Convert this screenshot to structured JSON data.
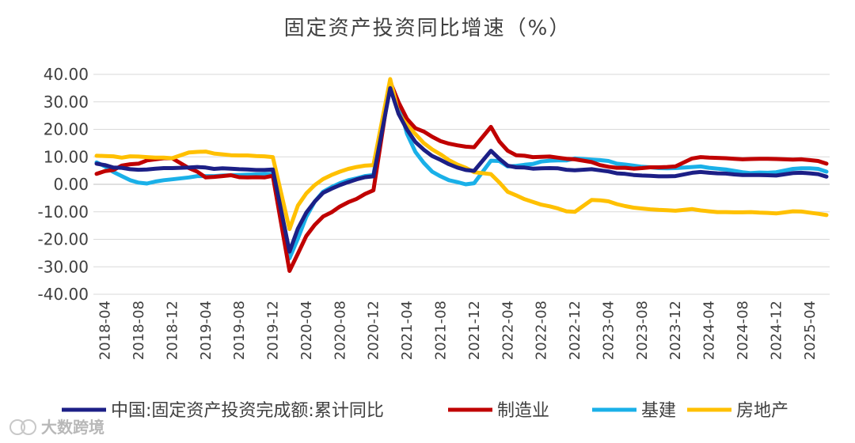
{
  "chart_data": {
    "type": "line",
    "title": "固定资产投资同比增速（%）",
    "xlabel": "",
    "ylabel": "",
    "ylim": [
      -40,
      40
    ],
    "yticks": [
      -40,
      -30,
      -20,
      -10,
      0,
      10,
      20,
      30,
      40
    ],
    "ytick_labels": [
      "-40.00",
      "-30.00",
      "-20.00",
      "-10.00",
      "0.00",
      "10.00",
      "20.00",
      "30.00",
      "40.00"
    ],
    "grid": "horizontal",
    "legend_position": "bottom",
    "x_tick_labels": [
      "2018-04",
      "2018-08",
      "2018-12",
      "2019-04",
      "2019-08",
      "2019-12",
      "2020-04",
      "2020-08",
      "2020-12",
      "2021-04",
      "2021-08",
      "2021-12",
      "2022-04",
      "2022-08",
      "2022-12",
      "2023-04",
      "2023-08",
      "2023-12",
      "2024-04",
      "2024-08",
      "2024-12",
      "2025-04"
    ],
    "x": [
      "2018-03",
      "2018-04",
      "2018-05",
      "2018-06",
      "2018-07",
      "2018-08",
      "2018-09",
      "2018-10",
      "2018-11",
      "2018-12",
      "2019-02",
      "2019-03",
      "2019-04",
      "2019-05",
      "2019-06",
      "2019-07",
      "2019-08",
      "2019-09",
      "2019-10",
      "2019-11",
      "2019-12",
      "2020-02",
      "2020-03",
      "2020-04",
      "2020-05",
      "2020-06",
      "2020-07",
      "2020-08",
      "2020-09",
      "2020-10",
      "2020-11",
      "2020-12",
      "2021-02",
      "2021-03",
      "2021-04",
      "2021-05",
      "2021-06",
      "2021-07",
      "2021-08",
      "2021-09",
      "2021-10",
      "2021-11",
      "2021-12",
      "2022-02",
      "2022-03",
      "2022-04",
      "2022-05",
      "2022-06",
      "2022-07",
      "2022-08",
      "2022-09",
      "2022-10",
      "2022-11",
      "2022-12",
      "2023-02",
      "2023-03",
      "2023-04",
      "2023-05",
      "2023-06",
      "2023-07",
      "2023-08",
      "2023-09",
      "2023-10",
      "2023-11",
      "2023-12",
      "2024-02",
      "2024-03",
      "2024-04",
      "2024-05",
      "2024-06",
      "2024-07",
      "2024-08",
      "2024-09",
      "2024-10",
      "2024-11",
      "2024-12",
      "2025-02",
      "2025-03",
      "2025-04",
      "2025-05",
      "2025-06"
    ],
    "series": [
      {
        "name": "中国:固定资产投资完成额:累计同比",
        "color": "#1c1f86",
        "values": [
          7.5,
          7.0,
          6.1,
          6.0,
          5.5,
          5.3,
          5.4,
          5.7,
          5.9,
          5.9,
          6.1,
          6.3,
          6.1,
          5.6,
          5.8,
          5.7,
          5.5,
          5.4,
          5.2,
          5.2,
          5.4,
          -24.5,
          -16.1,
          -10.3,
          -6.3,
          -3.1,
          -1.6,
          -0.3,
          0.8,
          1.8,
          2.6,
          2.9,
          35.0,
          25.6,
          19.9,
          15.4,
          12.6,
          10.3,
          8.9,
          7.3,
          6.1,
          5.2,
          4.9,
          12.2,
          9.3,
          6.8,
          6.2,
          6.1,
          5.7,
          5.8,
          5.9,
          5.8,
          5.3,
          5.1,
          5.5,
          5.1,
          4.7,
          4.0,
          3.8,
          3.4,
          3.2,
          3.1,
          2.9,
          2.9,
          3.0,
          4.2,
          4.5,
          4.2,
          4.0,
          3.9,
          3.6,
          3.4,
          3.4,
          3.4,
          3.3,
          3.2,
          4.1,
          4.2,
          4.0,
          3.7,
          2.8
        ]
      },
      {
        "name": "制造业",
        "color": "#c00000",
        "values": [
          3.8,
          4.8,
          5.2,
          6.8,
          7.3,
          7.5,
          8.7,
          9.1,
          9.5,
          9.5,
          5.9,
          4.6,
          2.5,
          2.7,
          3.0,
          3.3,
          2.6,
          2.5,
          2.6,
          2.5,
          3.1,
          -31.5,
          -25.2,
          -18.8,
          -14.8,
          -11.7,
          -10.2,
          -8.1,
          -6.5,
          -5.3,
          -3.5,
          -2.2,
          37.3,
          29.8,
          23.8,
          20.4,
          19.2,
          17.3,
          15.7,
          14.8,
          14.2,
          13.7,
          13.5,
          20.9,
          15.6,
          12.2,
          10.6,
          10.4,
          9.9,
          10.0,
          10.1,
          9.7,
          9.3,
          9.1,
          8.1,
          7.0,
          6.4,
          6.0,
          6.0,
          5.7,
          5.9,
          6.2,
          6.2,
          6.3,
          6.5,
          9.4,
          9.9,
          9.7,
          9.6,
          9.5,
          9.3,
          9.1,
          9.2,
          9.3,
          9.3,
          9.2,
          9.0,
          9.1,
          8.8,
          8.5,
          7.5
        ]
      },
      {
        "name": "基建",
        "color": "#1ab0e8",
        "values": [
          8.0,
          6.5,
          4.5,
          3.0,
          1.5,
          0.6,
          0.3,
          1.0,
          1.5,
          1.8,
          2.5,
          3.0,
          3.0,
          3.0,
          3.2,
          3.3,
          3.4,
          3.5,
          3.6,
          3.7,
          3.8,
          -26.9,
          -19.7,
          -11.8,
          -6.3,
          -2.7,
          -1.0,
          0.4,
          1.5,
          2.2,
          3.0,
          3.4,
          36.6,
          29.7,
          18.4,
          11.8,
          7.8,
          4.6,
          2.9,
          1.5,
          0.8,
          0.0,
          0.4,
          8.6,
          8.5,
          6.5,
          6.7,
          7.1,
          7.4,
          8.3,
          8.6,
          8.7,
          8.7,
          9.4,
          9.0,
          8.8,
          8.5,
          7.5,
          7.2,
          6.8,
          6.4,
          6.2,
          5.9,
          5.8,
          5.9,
          6.3,
          6.5,
          6.0,
          5.7,
          5.4,
          4.9,
          4.4,
          4.1,
          4.3,
          4.2,
          4.4,
          5.6,
          5.8,
          5.8,
          5.6,
          4.6
        ]
      },
      {
        "name": "房地产",
        "color": "#ffc000",
        "values": [
          10.4,
          10.3,
          10.2,
          9.7,
          10.2,
          10.1,
          9.9,
          9.7,
          9.7,
          9.5,
          11.6,
          11.8,
          11.9,
          11.2,
          10.9,
          10.6,
          10.5,
          10.5,
          10.3,
          10.2,
          9.9,
          -16.3,
          -7.7,
          -3.3,
          -0.3,
          1.9,
          3.4,
          4.6,
          5.6,
          6.3,
          6.8,
          7.0,
          38.3,
          25.6,
          21.6,
          18.3,
          15.0,
          12.7,
          10.9,
          8.8,
          7.2,
          6.0,
          4.4,
          3.7,
          0.7,
          -2.7,
          -4.0,
          -5.4,
          -6.4,
          -7.4,
          -8.0,
          -8.8,
          -9.8,
          -10.0,
          -5.7,
          -5.8,
          -6.2,
          -7.2,
          -7.9,
          -8.5,
          -8.8,
          -9.1,
          -9.3,
          -9.4,
          -9.6,
          -9.0,
          -9.5,
          -9.8,
          -10.1,
          -10.1,
          -10.2,
          -10.2,
          -10.1,
          -10.3,
          -10.4,
          -10.6,
          -9.8,
          -9.9,
          -10.3,
          -10.7,
          -11.2
        ]
      }
    ]
  },
  "watermark": "大数跨境"
}
